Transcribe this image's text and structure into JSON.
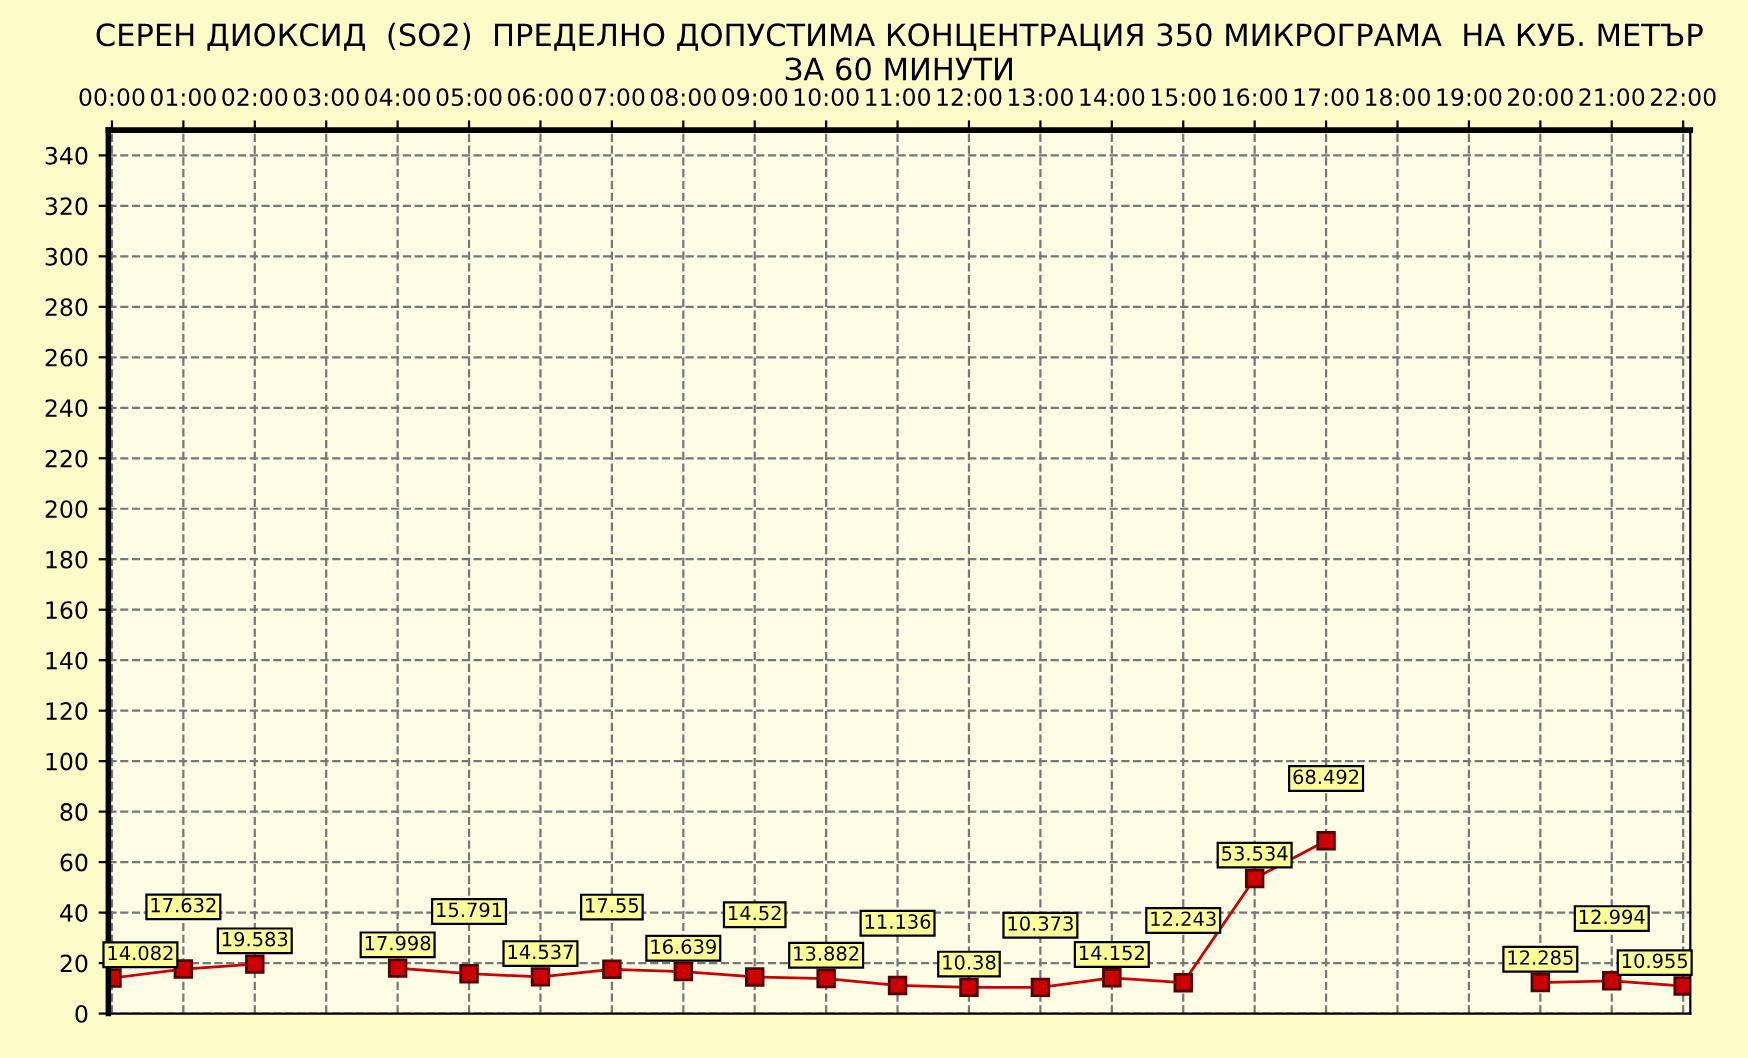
{
  "chart_data": {
    "type": "line",
    "title": "СЕРЕН ДИОКСИД  (SO2)  ПРЕДЕЛНО ДОПУСТИМА КОНЦЕНТРАЦИЯ 350 МИКРОГРАМА  НА КУБ. МЕТЪР\nЗА 60 МИНУТИ",
    "categories": [
      "00:00",
      "01:00",
      "02:00",
      "03:00",
      "04:00",
      "05:00",
      "06:00",
      "07:00",
      "08:00",
      "09:00",
      "10:00",
      "11:00",
      "12:00",
      "13:00",
      "14:00",
      "15:00",
      "16:00",
      "17:00",
      "18:00",
      "19:00",
      "20:00",
      "21:00",
      "22:00"
    ],
    "series": [
      {
        "color": "#cc0000",
        "values": [
          14.082,
          17.632,
          19.583,
          null,
          17.998,
          15.791,
          14.537,
          17.55,
          16.639,
          14.52,
          13.882,
          11.136,
          10.38,
          10.373,
          14.152,
          12.243,
          53.534,
          68.492,
          null,
          null,
          12.285,
          12.994,
          10.955
        ]
      }
    ],
    "ylim": [
      0,
      350
    ],
    "yticks": [
      0,
      20,
      40,
      60,
      80,
      100,
      120,
      140,
      160,
      180,
      200,
      220,
      240,
      260,
      280,
      300,
      320,
      340
    ],
    "grid": true,
    "marker": "square",
    "line_style": "solid",
    "data_labels": true,
    "legend": false
  }
}
